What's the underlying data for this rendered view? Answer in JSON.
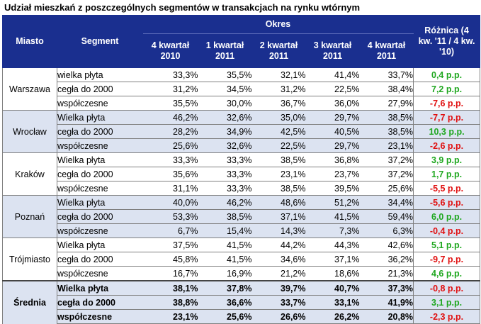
{
  "title": "Udział mieszkań z poszczególnych segmentów w transakcjach na rynku wtórnym",
  "header": {
    "miasto": "Miasto",
    "segment": "Segment",
    "okres": "Okres",
    "periods": [
      "4 kwartał 2010",
      "1 kwartał 2011",
      "2 kwartał 2011",
      "3 kwartał 2011",
      "4 kwartał 2011"
    ],
    "roznica": "Różnica (4 kw. '11 / 4 kw. '10)"
  },
  "groups": [
    {
      "city": "Warszawa",
      "rows": [
        {
          "segment": "wielka płyta",
          "values": [
            "33,3%",
            "35,5%",
            "32,1%",
            "41,4%",
            "33,7%"
          ],
          "diff": "0,4 p.p."
        },
        {
          "segment": "cegła do 2000",
          "values": [
            "31,2%",
            "34,5%",
            "31,2%",
            "22,5%",
            "38,4%"
          ],
          "diff": "7,2 p.p."
        },
        {
          "segment": "współczesne",
          "values": [
            "35,5%",
            "30,0%",
            "36,7%",
            "36,0%",
            "27,9%"
          ],
          "diff": "-7,6 p.p."
        }
      ]
    },
    {
      "city": "Wrocław",
      "rows": [
        {
          "segment": "Wielka płyta",
          "values": [
            "46,2%",
            "32,6%",
            "35,0%",
            "29,7%",
            "38,5%"
          ],
          "diff": "-7,7 p.p."
        },
        {
          "segment": "cegła do 2000",
          "values": [
            "28,2%",
            "34,9%",
            "42,5%",
            "40,5%",
            "38,5%"
          ],
          "diff": "10,3 p.p."
        },
        {
          "segment": "współczesne",
          "values": [
            "25,6%",
            "32,6%",
            "22,5%",
            "29,7%",
            "23,1%"
          ],
          "diff": "-2,6 p.p."
        }
      ]
    },
    {
      "city": "Kraków",
      "rows": [
        {
          "segment": "Wielka płyta",
          "values": [
            "33,3%",
            "33,3%",
            "38,5%",
            "36,8%",
            "37,2%"
          ],
          "diff": "3,9 p.p."
        },
        {
          "segment": "cegła do 2000",
          "values": [
            "35,6%",
            "33,3%",
            "23,1%",
            "23,7%",
            "37,2%"
          ],
          "diff": "1,7 p.p."
        },
        {
          "segment": "współczesne",
          "values": [
            "31,1%",
            "33,3%",
            "38,5%",
            "39,5%",
            "25,6%"
          ],
          "diff": "-5,5 p.p."
        }
      ]
    },
    {
      "city": "Poznań",
      "rows": [
        {
          "segment": "Wielka płyta",
          "values": [
            "40,0%",
            "46,2%",
            "48,6%",
            "51,2%",
            "34,4%"
          ],
          "diff": "-5,6 p.p."
        },
        {
          "segment": "cegła do 2000",
          "values": [
            "53,3%",
            "38,5%",
            "37,1%",
            "41,5%",
            "59,4%"
          ],
          "diff": "6,0 p.p."
        },
        {
          "segment": "współczesne",
          "values": [
            "6,7%",
            "15,4%",
            "14,3%",
            "7,3%",
            "6,3%"
          ],
          "diff": "-0,4 p.p."
        }
      ]
    },
    {
      "city": "Trójmiasto",
      "rows": [
        {
          "segment": "Wielka płyta",
          "values": [
            "37,5%",
            "41,5%",
            "44,2%",
            "44,3%",
            "42,6%"
          ],
          "diff": "5,1 p.p."
        },
        {
          "segment": "cegła do 2000",
          "values": [
            "45,8%",
            "41,5%",
            "34,6%",
            "37,1%",
            "36,2%"
          ],
          "diff": "-9,7 p.p."
        },
        {
          "segment": "współczesne",
          "values": [
            "16,7%",
            "16,9%",
            "21,2%",
            "18,6%",
            "21,3%"
          ],
          "diff": "4,6 p.p."
        }
      ]
    },
    {
      "city": "Średnia",
      "rows": [
        {
          "segment": "Wielka płyta",
          "values": [
            "38,1%",
            "37,8%",
            "39,7%",
            "40,7%",
            "37,3%"
          ],
          "diff": "-0,8 p.p."
        },
        {
          "segment": "cegła do 2000",
          "values": [
            "38,8%",
            "36,6%",
            "33,7%",
            "33,1%",
            "41,9%"
          ],
          "diff": "3,1 p.p."
        },
        {
          "segment": "współczesne",
          "values": [
            "23,1%",
            "25,6%",
            "26,6%",
            "26,2%",
            "20,8%"
          ],
          "diff": "-2,3 p.p."
        }
      ]
    }
  ],
  "colors": {
    "header_bg": "#1a2f8f",
    "shade": "#dce3f1",
    "positive": "#1fa71f",
    "negative": "#e01010"
  }
}
